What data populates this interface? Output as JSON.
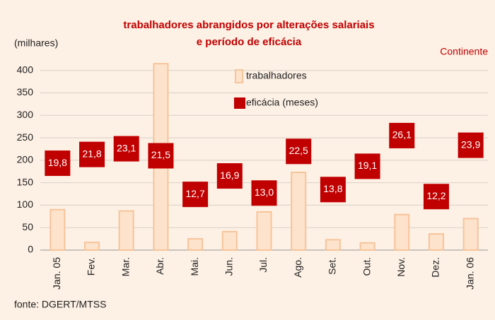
{
  "chart_data": {
    "type": "bar",
    "title": "trabalhadores abrangidos por alterações salariais",
    "subtitle": "e período de eficácia",
    "y_label": "(milhares)",
    "annotation": "Continente",
    "source": "fonte: DGERT/MTSS",
    "categories": [
      "Jan. 05",
      "Fev.",
      "Mar.",
      "Abr.",
      "Mai.",
      "Jun.",
      "Jul.",
      "Ago.",
      "Set.",
      "Out.",
      "Nov.",
      "Dez.",
      "Jan. 06"
    ],
    "series": [
      {
        "name": "trabalhadores",
        "type": "bar",
        "color": "#fde3cc",
        "values": [
          90,
          17,
          87,
          415,
          25,
          41,
          85,
          173,
          23,
          16,
          79,
          36,
          70
        ]
      },
      {
        "name": "eficácia (meses)",
        "type": "scatter",
        "color": "#c00000",
        "axis": "y2",
        "values": [
          19.8,
          21.8,
          23.1,
          21.5,
          12.7,
          16.9,
          13.0,
          22.5,
          13.8,
          19.1,
          26.1,
          12.2,
          23.9
        ],
        "value_labels": [
          "19,8",
          "21,8",
          "23,1",
          "21,5",
          "12,7",
          "16,9",
          "13,0",
          "22,5",
          "13,8",
          "19,1",
          "26,1",
          "12,2",
          "23,9"
        ]
      }
    ],
    "ylim": [
      0,
      420
    ],
    "yticks": [
      0,
      50,
      100,
      150,
      200,
      250,
      300,
      350,
      400
    ],
    "y2lim": [
      0,
      43
    ],
    "grid": true
  }
}
